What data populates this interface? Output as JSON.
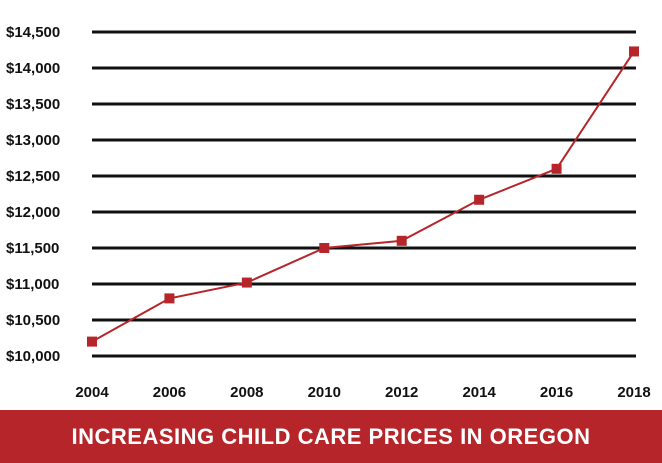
{
  "chart_data": {
    "type": "line",
    "title": "INCREASING CHILD CARE PRICES IN OREGON",
    "xlabel": "",
    "ylabel": "",
    "x": [
      2004,
      2006,
      2008,
      2010,
      2012,
      2014,
      2016,
      2018
    ],
    "x_tick_labels": [
      "2004",
      "2006",
      "2008",
      "2010",
      "2012",
      "2014",
      "2016",
      "2018"
    ],
    "series": [
      {
        "values": [
          10200,
          10800,
          11020,
          11500,
          11600,
          12170,
          12600,
          14230
        ]
      }
    ],
    "ylim": [
      10000,
      14500
    ],
    "y_ticks": [
      10000,
      10500,
      11000,
      11500,
      12000,
      12500,
      13000,
      13500,
      14000,
      14500
    ],
    "y_tick_labels": [
      "$10,000",
      "$10,500",
      "$11,000",
      "$11,500",
      "$12,000",
      "$12,500",
      "$13,000",
      "$13,500",
      "$14,000",
      "$14,500"
    ],
    "grid": true,
    "colors": {
      "line": "#b5252a",
      "marker": "#b5252a",
      "gridline": "#111111",
      "banner": "#b5252a",
      "banner_text": "#ffffff"
    }
  }
}
